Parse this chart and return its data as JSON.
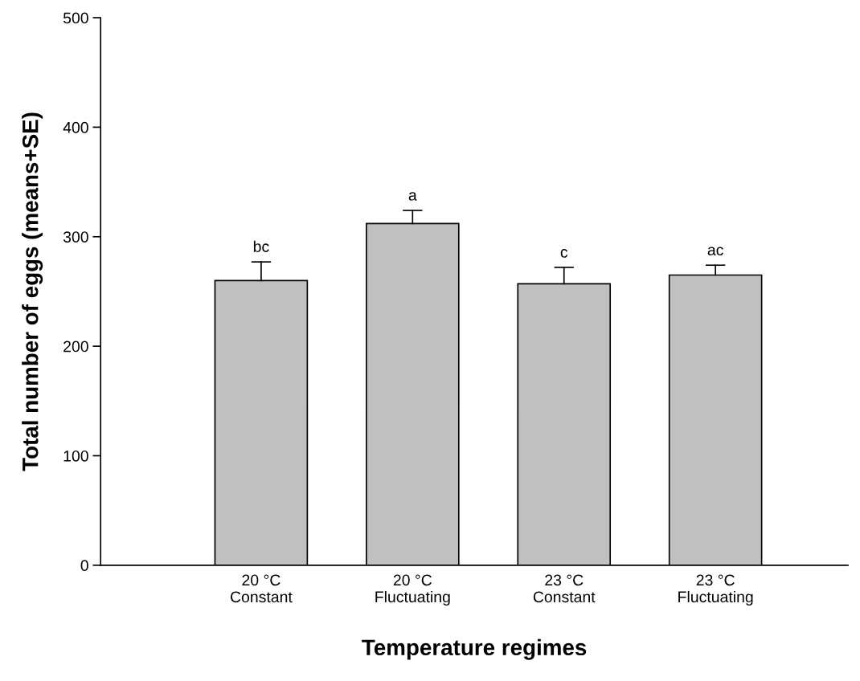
{
  "chart_data": {
    "type": "bar",
    "xlabel": "Temperature regimes",
    "ylabel": "Total number of eggs (means+SE)",
    "categories": [
      "20 °C\nConstant",
      "20 °C\nFluctuating",
      "23 °C\nConstant",
      "23 °C\nFluctuating"
    ],
    "values": [
      260,
      312,
      257,
      265
    ],
    "errors": [
      [
        260,
        277
      ],
      [
        312,
        324
      ],
      [
        257,
        272
      ],
      [
        265,
        274
      ]
    ],
    "color": "#c0c0c0",
    "ylim": [
      0,
      500
    ],
    "yticks": [
      0,
      100,
      200,
      300,
      400,
      500
    ],
    "value_labels": [
      "bc",
      "a",
      "c",
      "ac"
    ],
    "grid": false
  }
}
